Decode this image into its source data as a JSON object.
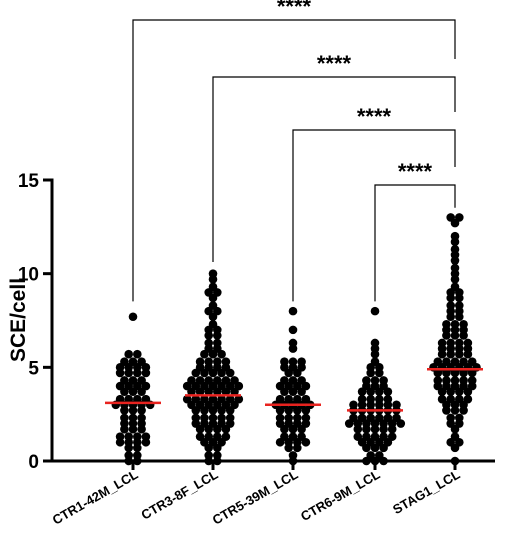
{
  "chart_data": {
    "type": "scatter",
    "subtype": "dot-plot with mean lines",
    "ylabel": "SCE/cell",
    "ylim": [
      0,
      15
    ],
    "yticks": [
      0,
      5,
      10,
      15
    ],
    "categories": [
      "CTR1-42M_LCL",
      "CTR3-8F_LCL",
      "CTR5-39M_LCL",
      "CTR6-9M_LCL",
      "STAG1_LCL"
    ],
    "mean_color": "#e8231f",
    "point_color": "#000000",
    "series": [
      {
        "category": "CTR1-42M_LCL",
        "mean": 3.1,
        "values": [
          7.7,
          5.7,
          5.7,
          5.3,
          5.3,
          5.3,
          5.0,
          5.0,
          5.0,
          5.0,
          4.7,
          4.7,
          4.7,
          4.7,
          4.3,
          4.3,
          4.3,
          4.0,
          4.0,
          4.0,
          4.0,
          3.7,
          3.7,
          3.7,
          3.3,
          3.3,
          3.3,
          3.3,
          3.0,
          3.0,
          3.0,
          3.0,
          3.0,
          2.7,
          2.7,
          2.7,
          2.3,
          2.3,
          2.3,
          2.0,
          2.0,
          2.0,
          1.7,
          1.7,
          1.7,
          1.3,
          1.3,
          1.3,
          1.3,
          1.0,
          1.0,
          1.0,
          1.0,
          0.7,
          0.7,
          0.3,
          0.3,
          0,
          0
        ]
      },
      {
        "category": "CTR3-8F_LCL",
        "mean": 3.5,
        "values": [
          10.0,
          9.7,
          9.3,
          9.0,
          9.0,
          8.7,
          8.3,
          8.0,
          8.0,
          7.7,
          7.3,
          7.0,
          7.0,
          6.7,
          6.7,
          6.3,
          6.3,
          6.0,
          6.0,
          5.7,
          5.7,
          5.7,
          5.3,
          5.3,
          5.3,
          5.3,
          5.0,
          5.0,
          5.0,
          5.0,
          4.7,
          4.7,
          4.7,
          4.7,
          4.7,
          4.3,
          4.3,
          4.3,
          4.3,
          4.3,
          4.3,
          4.0,
          4.0,
          4.0,
          4.0,
          4.0,
          4.0,
          4.0,
          3.7,
          3.7,
          3.7,
          3.7,
          3.7,
          3.7,
          3.3,
          3.3,
          3.3,
          3.3,
          3.3,
          3.3,
          3.3,
          3.0,
          3.0,
          3.0,
          3.0,
          3.0,
          3.0,
          2.7,
          2.7,
          2.7,
          2.7,
          2.7,
          2.3,
          2.3,
          2.3,
          2.3,
          2.3,
          2.0,
          2.0,
          2.0,
          2.0,
          2.0,
          1.7,
          1.7,
          1.7,
          1.7,
          1.3,
          1.3,
          1.3,
          1.3,
          1.0,
          1.0,
          1.0,
          0.7,
          0.7,
          0.3,
          0.3,
          0,
          0
        ]
      },
      {
        "category": "CTR5-39M_LCL",
        "mean": 3.0,
        "values": [
          8.0,
          7.0,
          6.3,
          6.0,
          5.3,
          5.3,
          5.3,
          5.0,
          5.0,
          5.0,
          4.7,
          4.7,
          4.3,
          4.3,
          4.3,
          4.0,
          4.0,
          4.0,
          4.0,
          3.7,
          3.7,
          3.7,
          3.3,
          3.3,
          3.3,
          3.3,
          3.0,
          3.0,
          3.0,
          3.0,
          3.0,
          2.7,
          2.7,
          2.7,
          2.7,
          2.3,
          2.3,
          2.3,
          2.3,
          2.0,
          2.0,
          2.0,
          2.0,
          1.7,
          1.7,
          1.7,
          1.3,
          1.3,
          1.3,
          1.0,
          1.0,
          1.0,
          1.0,
          0.7,
          0.7,
          0.3,
          0
        ]
      },
      {
        "category": "CTR6-9M_LCL",
        "mean": 2.7,
        "values": [
          8.0,
          6.3,
          6.0,
          5.7,
          5.3,
          5.0,
          5.0,
          4.7,
          4.7,
          4.3,
          4.3,
          4.3,
          4.0,
          4.0,
          4.0,
          3.7,
          3.7,
          3.7,
          3.7,
          3.3,
          3.3,
          3.3,
          3.3,
          3.0,
          3.0,
          3.0,
          3.0,
          3.0,
          3.0,
          2.7,
          2.7,
          2.7,
          2.7,
          2.7,
          2.7,
          2.3,
          2.3,
          2.3,
          2.3,
          2.3,
          2.3,
          2.0,
          2.0,
          2.0,
          2.0,
          2.0,
          2.0,
          2.0,
          1.7,
          1.7,
          1.7,
          1.7,
          1.7,
          1.3,
          1.3,
          1.3,
          1.3,
          1.3,
          1.0,
          1.0,
          1.0,
          1.0,
          0.7,
          0.7,
          0.7,
          0.3,
          0.3,
          0,
          0,
          0
        ]
      },
      {
        "category": "STAG1_LCL",
        "mean": 4.9,
        "values": [
          13.0,
          13.0,
          12.7,
          12.0,
          11.7,
          11.3,
          11.0,
          10.7,
          10.3,
          10.0,
          9.7,
          9.3,
          9.0,
          9.0,
          8.7,
          8.7,
          8.3,
          8.3,
          8.0,
          8.0,
          7.7,
          7.7,
          7.3,
          7.3,
          7.3,
          7.0,
          7.0,
          7.0,
          6.7,
          6.7,
          6.7,
          6.3,
          6.3,
          6.3,
          6.3,
          6.0,
          6.0,
          6.0,
          6.0,
          5.7,
          5.7,
          5.7,
          5.7,
          5.3,
          5.3,
          5.3,
          5.3,
          5.3,
          5.0,
          5.0,
          5.0,
          5.0,
          5.0,
          5.0,
          4.7,
          4.7,
          4.7,
          4.7,
          4.7,
          4.3,
          4.3,
          4.3,
          4.3,
          4.3,
          4.0,
          4.0,
          4.0,
          4.0,
          4.0,
          3.7,
          3.7,
          3.7,
          3.7,
          3.3,
          3.3,
          3.3,
          3.3,
          3.0,
          3.0,
          3.0,
          2.7,
          2.7,
          2.7,
          2.3,
          2.3,
          2.0,
          2.0,
          1.7,
          1.3,
          1.0,
          1.0,
          0.7,
          0
        ]
      }
    ],
    "comparisons": [
      {
        "from": "CTR1-42M_LCL",
        "to": "STAG1_LCL",
        "label": "****"
      },
      {
        "from": "CTR3-8F_LCL",
        "to": "STAG1_LCL",
        "label": "****"
      },
      {
        "from": "CTR5-39M_LCL",
        "to": "STAG1_LCL",
        "label": "****"
      },
      {
        "from": "CTR6-9M_LCL",
        "to": "STAG1_LCL",
        "label": "****"
      }
    ]
  }
}
